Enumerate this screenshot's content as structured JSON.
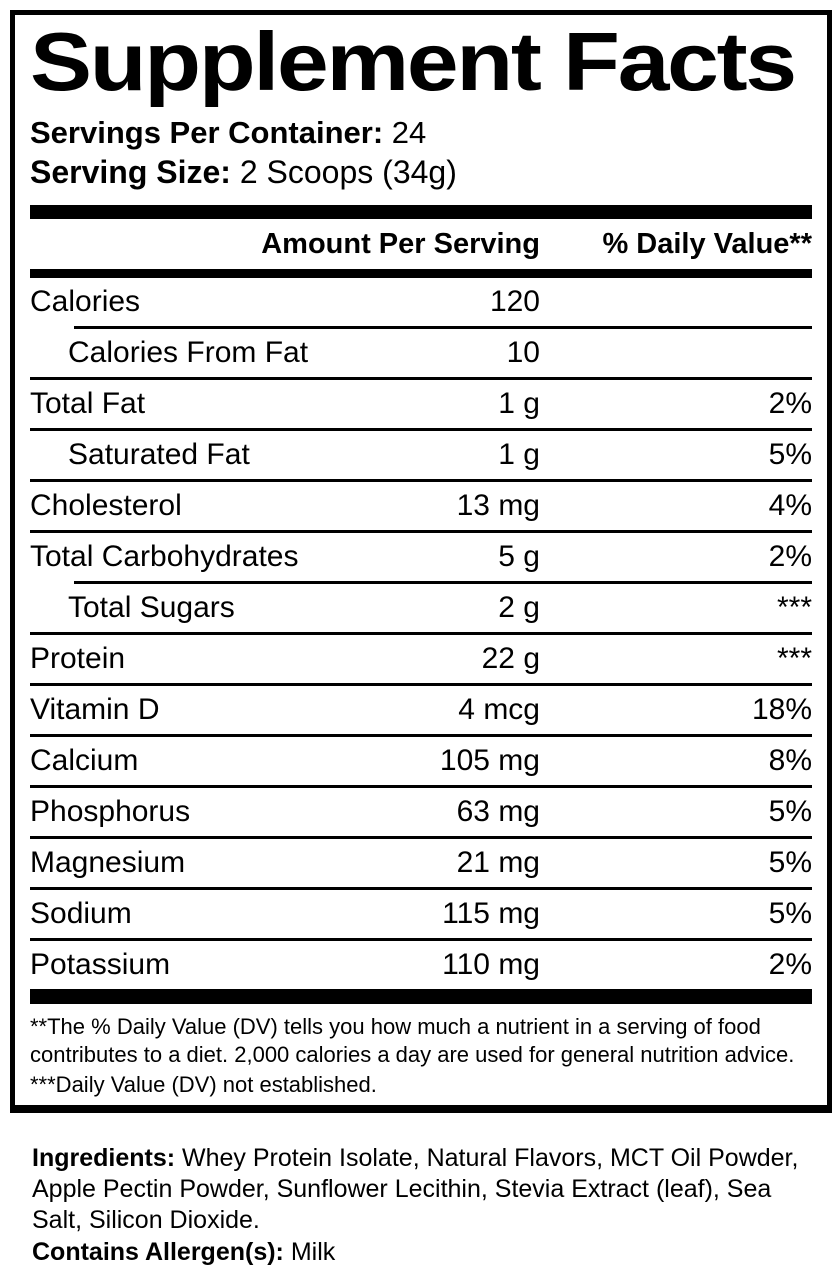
{
  "label": {
    "title": "Supplement Facts",
    "servings_per_container_label": "Servings Per Container:",
    "servings_per_container_value": " 24",
    "serving_size_label": "Serving Size:",
    "serving_size_value": " 2 Scoops (34g)",
    "columns": {
      "amount": "Amount Per Serving",
      "daily_value": "% Daily Value**"
    },
    "rows": [
      {
        "name": "Calories",
        "amount": "120",
        "dv": "",
        "indent": false,
        "divider": "indent"
      },
      {
        "name": "Calories From Fat",
        "amount": "10",
        "dv": "",
        "indent": true,
        "divider": "full"
      },
      {
        "name": "Total Fat",
        "amount": "1 g",
        "dv": "2%",
        "indent": false,
        "divider": "full"
      },
      {
        "name": "Saturated Fat",
        "amount": "1 g",
        "dv": "5%",
        "indent": true,
        "divider": "full"
      },
      {
        "name": "Cholesterol",
        "amount": "13 mg",
        "dv": "4%",
        "indent": false,
        "divider": "full"
      },
      {
        "name": "Total Carbohydrates",
        "amount": "5 g",
        "dv": "2%",
        "indent": false,
        "divider": "indent"
      },
      {
        "name": "Total Sugars",
        "amount": "2 g",
        "dv": "***",
        "indent": true,
        "divider": "full"
      },
      {
        "name": "Protein",
        "amount": "22 g",
        "dv": "***",
        "indent": false,
        "divider": "full"
      },
      {
        "name": "Vitamin D",
        "amount": "4 mcg",
        "dv": "18%",
        "indent": false,
        "divider": "full"
      },
      {
        "name": "Calcium",
        "amount": "105 mg",
        "dv": "8%",
        "indent": false,
        "divider": "full"
      },
      {
        "name": "Phosphorus",
        "amount": "63 mg",
        "dv": "5%",
        "indent": false,
        "divider": "full"
      },
      {
        "name": "Magnesium",
        "amount": "21 mg",
        "dv": "5%",
        "indent": false,
        "divider": "full"
      },
      {
        "name": "Sodium",
        "amount": "115 mg",
        "dv": "5%",
        "indent": false,
        "divider": "full"
      },
      {
        "name": "Potassium",
        "amount": "110 mg",
        "dv": "2%",
        "indent": false,
        "divider": "none"
      }
    ],
    "footnotes": {
      "daily_value_note": "**The % Daily Value (DV) tells you how much a nutrient in a serving of food contributes to a diet. 2,000 calories a day are used for general nutrition advice.",
      "not_established_note": "***Daily Value (DV) not established."
    }
  },
  "ingredients": {
    "label": "Ingredients:",
    "text": " Whey Protein Isolate, Natural Flavors, MCT Oil Powder, Apple Pectin Powder, Sunflower Lecithin, Stevia Extract (leaf), Sea Salt, Silicon Dioxide.",
    "allergen_label": "Contains Allergen(s):",
    "allergen_value": " Milk"
  },
  "colors": {
    "text": "#000000",
    "background": "#ffffff"
  }
}
